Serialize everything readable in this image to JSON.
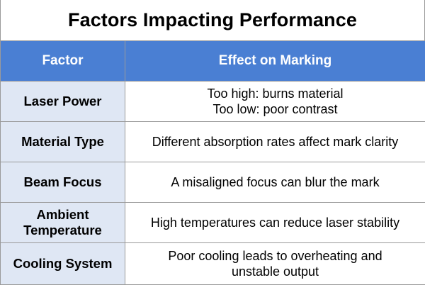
{
  "title": "Factors Impacting Performance",
  "columns": {
    "factor": "Factor",
    "effect": "Effect on Marking"
  },
  "rows": [
    {
      "factor": [
        "Laser Power"
      ],
      "effect": [
        "Too high: burns material",
        "Too low: poor contrast"
      ]
    },
    {
      "factor": [
        "Material Type"
      ],
      "effect": [
        "Different absorption rates affect mark clarity"
      ]
    },
    {
      "factor": [
        "Beam Focus"
      ],
      "effect": [
        "A misaligned focus can blur the mark"
      ]
    },
    {
      "factor": [
        "Ambient",
        "Temperature"
      ],
      "effect": [
        "High temperatures can reduce laser stability"
      ]
    },
    {
      "factor": [
        "Cooling System"
      ],
      "effect": [
        "Poor cooling leads to overheating and",
        "unstable output"
      ]
    }
  ]
}
